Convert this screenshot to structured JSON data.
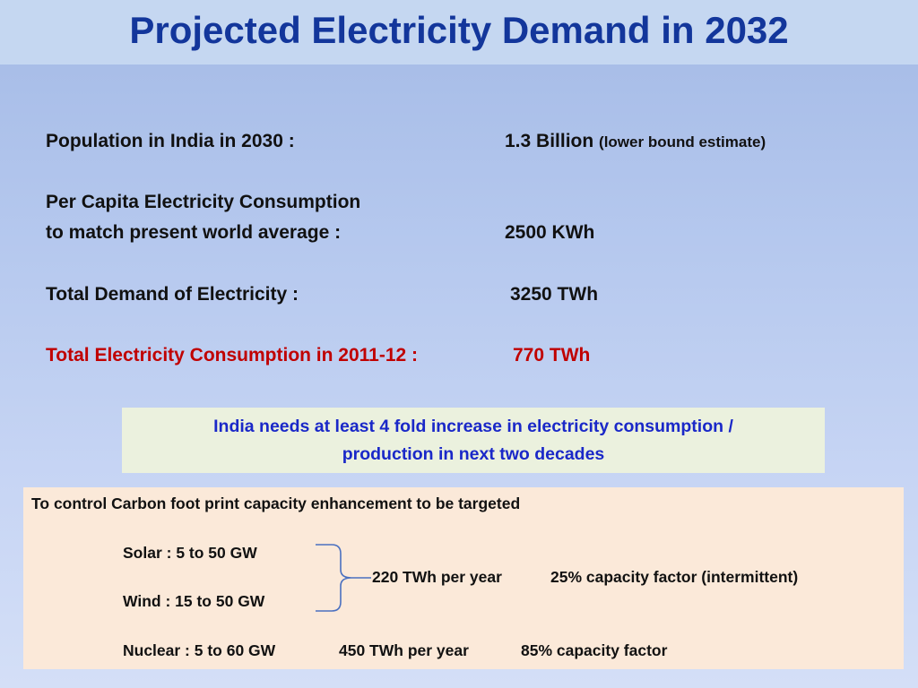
{
  "title": "Projected Electricity Demand in 2032",
  "stats": {
    "population_label": "Population in India in 2030 :",
    "population_value": "1.3 Billion",
    "population_note": "(lower bound estimate)",
    "per_capita_label_1": "Per Capita Electricity Consumption",
    "per_capita_label_2": "to match present world average :",
    "per_capita_value": "2500 KWh",
    "total_demand_label": "Total Demand of Electricity :",
    "total_demand_value": "3250 TWh",
    "consumption_label": "Total Electricity Consumption in 2011-12 :",
    "consumption_value": "770 TWh"
  },
  "callout": {
    "line1": "India needs at least 4 fold increase in electricity consumption /",
    "line2": "production in next two decades"
  },
  "carbon_box": {
    "heading": "To control Carbon foot print capacity enhancement to be targeted",
    "solar": "Solar : 5 to 50 GW",
    "wind": "Wind : 15 to 50 GW",
    "renewables_output": "220 TWh  per year",
    "renewables_factor": "25% capacity factor (intermittent)",
    "nuclear": "Nuclear :  5 to 60 GW",
    "nuclear_output": "450 TWh  per year",
    "nuclear_factor": "85% capacity factor"
  },
  "colors": {
    "title": "#13369b",
    "highlight_red": "#c00000",
    "callout_text": "#1a28c8",
    "callout_bg": "#ebf1de",
    "box_bg": "#fbe9d9",
    "brace": "#4a70c0"
  }
}
